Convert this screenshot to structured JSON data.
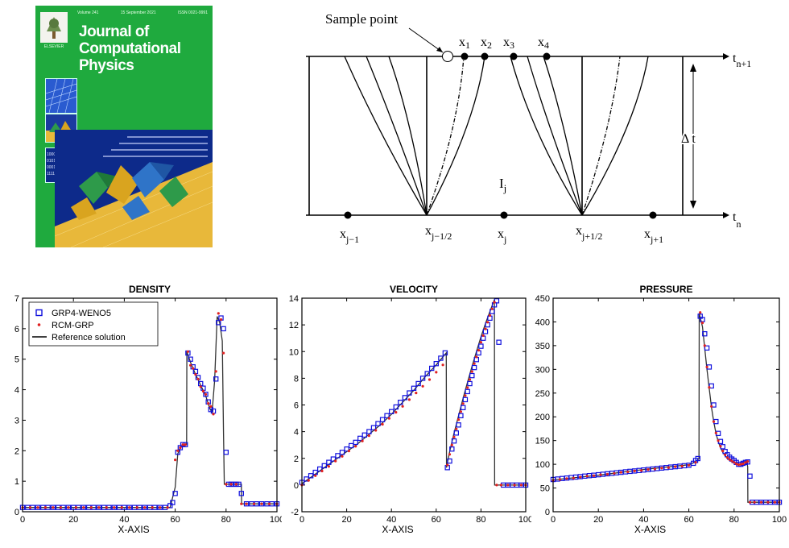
{
  "cover": {
    "title_lines": [
      "Journal of",
      "Computational",
      "Physics"
    ],
    "volume": "Volume 241",
    "date": "15 September 2021",
    "issn": "ISSN 0021-9991",
    "publisher": "ELSEVIER",
    "binary_rows": [
      "10000100101010",
      "01010111010110",
      "00010011010011",
      "11111011100110"
    ],
    "colors": {
      "background": "#1faa3e",
      "title": "#ffffff",
      "floor": "#e8b83a",
      "sky": "#0d2a8a",
      "crystal_blue": "#2f74c8",
      "crystal_green": "#2e9a4a",
      "crystal_gold": "#d9a41f"
    }
  },
  "schematic": {
    "sample_point_label": "Sample point",
    "x_points": [
      "x",
      "x",
      "x",
      "x"
    ],
    "x_point_subs": [
      "1",
      "2",
      "3",
      "4"
    ],
    "top_level": "t",
    "top_level_sub": "n+1",
    "bottom_level": "t",
    "bottom_level_sub": "n",
    "delta_t": "Δ t",
    "cell_label": "I",
    "cell_sub": "j",
    "bottom_labels": [
      {
        "main": "x",
        "sub": "j−1"
      },
      {
        "main": "x",
        "sub": "j−1/2"
      },
      {
        "main": "x",
        "sub": "j"
      },
      {
        "main": "x",
        "sub": "j+1/2"
      },
      {
        "main": "x",
        "sub": "j+1"
      }
    ]
  },
  "chart_data": [
    {
      "type": "scatter",
      "title": "DENSITY",
      "xlabel": "X-AXIS",
      "ylabel": "",
      "xlim": [
        0,
        100
      ],
      "ylim": [
        0,
        7
      ],
      "xticks": [
        "0",
        "20",
        "40",
        "60",
        "80",
        "100"
      ],
      "yticks": [
        "0",
        "1",
        "2",
        "3",
        "4",
        "5",
        "6",
        "7"
      ],
      "legend": {
        "placement": "top-left",
        "entries": [
          "GRP4-WENO5",
          "RCM-GRP",
          "Reference solution"
        ]
      },
      "reference": {
        "name": "Reference solution",
        "color": "#000000",
        "x": [
          0,
          58,
          60,
          61,
          62,
          64,
          64.5,
          64.6,
          66,
          68,
          70,
          72,
          73.5,
          74.5,
          75.5,
          76.5,
          77.5,
          78.5,
          79,
          79.3,
          80,
          86,
          86.1,
          100
        ],
        "y": [
          0.14,
          0.14,
          0.8,
          1.9,
          2.1,
          2.2,
          2.2,
          5.25,
          4.9,
          4.5,
          4.15,
          3.8,
          3.4,
          3.25,
          4.3,
          6.4,
          6.2,
          5.6,
          2.6,
          0.9,
          0.9,
          0.9,
          0.26,
          0.26
        ]
      },
      "series": [
        {
          "name": "GRP4-WENO5",
          "marker": "square",
          "color": "#1010dd",
          "x": [
            0,
            2,
            4,
            6,
            8,
            10,
            12,
            14,
            16,
            18,
            20,
            22,
            24,
            26,
            28,
            30,
            32,
            34,
            36,
            38,
            40,
            42,
            44,
            46,
            48,
            50,
            52,
            54,
            56,
            58,
            59,
            60,
            61,
            62,
            63,
            64,
            65,
            66,
            67,
            68,
            69,
            70,
            71,
            72,
            73,
            74,
            75,
            76,
            77,
            78,
            79,
            80,
            81,
            82,
            83,
            84,
            85,
            86,
            88,
            90,
            92,
            94,
            96,
            98,
            100
          ],
          "y": [
            0.14,
            0.14,
            0.14,
            0.14,
            0.14,
            0.14,
            0.14,
            0.14,
            0.14,
            0.14,
            0.14,
            0.14,
            0.14,
            0.14,
            0.14,
            0.14,
            0.14,
            0.14,
            0.14,
            0.14,
            0.14,
            0.14,
            0.14,
            0.14,
            0.14,
            0.14,
            0.14,
            0.14,
            0.14,
            0.2,
            0.3,
            0.6,
            1.95,
            2.1,
            2.2,
            2.2,
            5.2,
            5.0,
            4.75,
            4.6,
            4.4,
            4.2,
            4.05,
            3.85,
            3.6,
            3.35,
            3.3,
            4.35,
            6.2,
            6.35,
            6.0,
            1.95,
            0.9,
            0.9,
            0.9,
            0.9,
            0.9,
            0.6,
            0.26,
            0.26,
            0.26,
            0.26,
            0.26,
            0.26,
            0.26
          ]
        },
        {
          "name": "RCM-GRP",
          "marker": "dot",
          "color": "#e02020",
          "x": [
            0,
            3,
            6,
            9,
            12,
            15,
            18,
            21,
            24,
            27,
            30,
            33,
            36,
            39,
            42,
            45,
            48,
            51,
            54,
            57,
            60,
            61,
            62,
            63,
            64,
            65,
            66,
            67,
            68,
            69,
            70,
            71,
            72,
            73,
            74,
            75,
            76,
            77,
            78,
            79,
            80,
            82,
            84,
            86,
            88,
            91,
            94,
            97,
            100
          ],
          "y": [
            0.14,
            0.14,
            0.14,
            0.14,
            0.14,
            0.14,
            0.14,
            0.14,
            0.14,
            0.14,
            0.14,
            0.14,
            0.14,
            0.14,
            0.14,
            0.14,
            0.14,
            0.14,
            0.14,
            0.14,
            1.7,
            2.0,
            2.1,
            2.2,
            2.2,
            5.25,
            4.8,
            4.7,
            4.5,
            4.35,
            4.1,
            3.95,
            3.85,
            3.55,
            3.45,
            3.2,
            4.6,
            6.5,
            6.3,
            5.2,
            0.9,
            0.9,
            0.9,
            0.26,
            0.26,
            0.26,
            0.26,
            0.26,
            0.26
          ]
        }
      ]
    },
    {
      "type": "scatter",
      "title": "VELOCITY",
      "xlabel": "X-AXIS",
      "ylabel": "",
      "xlim": [
        0,
        100
      ],
      "ylim": [
        -2,
        14
      ],
      "xticks": [
        "0",
        "20",
        "40",
        "60",
        "80",
        "100"
      ],
      "yticks": [
        "-2",
        "0",
        "2",
        "4",
        "6",
        "8",
        "10",
        "12",
        "14"
      ],
      "reference": {
        "name": "Reference solution",
        "color": "#000000",
        "x": [
          0,
          5,
          10,
          15,
          20,
          25,
          30,
          35,
          40,
          45,
          50,
          55,
          60,
          64.5,
          64.6,
          66,
          68,
          70,
          72,
          74,
          76,
          78,
          80,
          82,
          84,
          86,
          86.1,
          100
        ],
        "y": [
          0.1,
          0.7,
          1.3,
          1.9,
          2.5,
          3.1,
          3.8,
          4.5,
          5.3,
          6.2,
          7.1,
          8.1,
          9.0,
          9.9,
          1.3,
          2.5,
          3.9,
          5.2,
          6.5,
          7.7,
          8.9,
          10.0,
          11.1,
          12.1,
          13.0,
          13.9,
          0.0,
          0.0
        ]
      },
      "series": [
        {
          "name": "GRP4-WENO5",
          "marker": "square",
          "color": "#1010dd",
          "x": [
            0,
            2,
            4,
            6,
            8,
            10,
            12,
            14,
            16,
            18,
            20,
            22,
            24,
            26,
            28,
            30,
            32,
            34,
            36,
            38,
            40,
            42,
            44,
            46,
            48,
            50,
            52,
            54,
            56,
            58,
            60,
            62,
            64,
            65,
            66,
            67,
            68,
            69,
            70,
            71,
            72,
            73,
            74,
            75,
            76,
            77,
            78,
            79,
            80,
            81,
            82,
            83,
            84,
            85,
            86,
            87,
            88,
            90,
            92,
            94,
            96,
            98,
            100
          ],
          "y": [
            0.2,
            0.45,
            0.7,
            0.95,
            1.2,
            1.45,
            1.7,
            1.95,
            2.2,
            2.45,
            2.7,
            2.95,
            3.2,
            3.5,
            3.75,
            4.0,
            4.3,
            4.6,
            4.9,
            5.2,
            5.5,
            5.85,
            6.2,
            6.55,
            6.9,
            7.25,
            7.6,
            8.0,
            8.35,
            8.75,
            9.1,
            9.5,
            9.9,
            1.3,
            1.8,
            2.7,
            3.3,
            3.9,
            4.5,
            5.2,
            5.8,
            6.4,
            7.0,
            7.6,
            8.2,
            8.8,
            9.4,
            9.9,
            10.4,
            11.0,
            11.5,
            12.0,
            12.5,
            13.0,
            13.5,
            13.8,
            10.7,
            0.0,
            0.0,
            0.0,
            0.0,
            0.0,
            0.0
          ]
        },
        {
          "name": "RCM-GRP",
          "marker": "dot",
          "color": "#e02020",
          "x": [
            0,
            3,
            6,
            9,
            12,
            15,
            18,
            21,
            24,
            27,
            30,
            33,
            36,
            39,
            42,
            45,
            48,
            51,
            54,
            57,
            60,
            63,
            65,
            66,
            67,
            68,
            69,
            70,
            71,
            72,
            73,
            74,
            75,
            76,
            77,
            78,
            79,
            80,
            81,
            82,
            83,
            84,
            85,
            86,
            87,
            89,
            92,
            95,
            98,
            100
          ],
          "y": [
            0.0,
            0.35,
            0.7,
            1.05,
            1.4,
            1.8,
            2.15,
            2.55,
            2.9,
            3.3,
            3.7,
            4.1,
            4.55,
            5.0,
            5.45,
            5.9,
            6.4,
            6.9,
            7.4,
            7.9,
            8.45,
            9.0,
            1.5,
            2.3,
            3.0,
            3.6,
            4.2,
            4.9,
            5.5,
            6.1,
            6.7,
            7.3,
            7.9,
            8.5,
            9.1,
            9.6,
            10.1,
            10.7,
            11.2,
            11.7,
            12.2,
            12.7,
            13.2,
            13.7,
            0.0,
            0.0,
            0.0,
            0.0,
            0.0,
            0.0
          ]
        }
      ]
    },
    {
      "type": "scatter",
      "title": "PRESSURE",
      "xlabel": "X-AXIS",
      "ylabel": "",
      "xlim": [
        0,
        100
      ],
      "ylim": [
        0,
        450
      ],
      "xticks": [
        "0",
        "20",
        "40",
        "60",
        "80",
        "100"
      ],
      "yticks": [
        "0",
        "50",
        "100",
        "150",
        "200",
        "250",
        "300",
        "350",
        "400",
        "450"
      ],
      "reference": {
        "name": "Reference solution",
        "color": "#000000",
        "x": [
          0,
          10,
          20,
          30,
          40,
          50,
          60,
          63,
          64.5,
          64.6,
          66,
          67,
          68,
          69,
          70,
          71,
          72,
          73,
          74,
          75,
          76,
          78,
          80,
          82,
          84,
          85.5,
          86,
          86.1,
          100
        ],
        "y": [
          67,
          72,
          77,
          83,
          89,
          94,
          99,
          105,
          112,
          418,
          390,
          345,
          300,
          260,
          220,
          190,
          165,
          148,
          135,
          125,
          118,
          110,
          104,
          100,
          102,
          106,
          95,
          20,
          20
        ]
      },
      "series": [
        {
          "name": "GRP4-WENO5",
          "marker": "square",
          "color": "#1010dd",
          "x": [
            0,
            2,
            4,
            6,
            8,
            10,
            12,
            14,
            16,
            18,
            20,
            22,
            24,
            26,
            28,
            30,
            32,
            34,
            36,
            38,
            40,
            42,
            44,
            46,
            48,
            50,
            52,
            54,
            56,
            58,
            60,
            62,
            63,
            64,
            65,
            66,
            67,
            68,
            69,
            70,
            71,
            72,
            73,
            74,
            75,
            76,
            77,
            78,
            79,
            80,
            81,
            82,
            83,
            84,
            85,
            86,
            87,
            88,
            90,
            92,
            94,
            96,
            98,
            100
          ],
          "y": [
            68,
            69,
            70,
            71,
            72,
            73,
            74,
            75,
            76,
            77,
            78,
            79,
            80,
            81,
            82,
            83,
            84,
            85,
            86,
            87,
            88,
            89,
            90,
            91,
            92,
            93,
            94,
            95,
            96,
            97,
            98,
            102,
            108,
            112,
            412,
            405,
            375,
            345,
            305,
            265,
            225,
            190,
            165,
            148,
            137,
            127,
            120,
            115,
            111,
            108,
            104,
            100,
            100,
            102,
            104,
            105,
            75,
            20,
            20,
            20,
            20,
            20,
            20,
            20
          ]
        },
        {
          "name": "RCM-GRP",
          "marker": "dot",
          "color": "#e02020",
          "x": [
            0,
            3,
            6,
            9,
            12,
            15,
            18,
            21,
            24,
            27,
            30,
            33,
            36,
            39,
            42,
            45,
            48,
            51,
            54,
            57,
            60,
            63,
            65,
            66,
            67,
            68,
            69,
            70,
            71,
            72,
            73,
            74,
            75,
            76,
            77,
            78,
            79,
            80,
            81,
            82,
            83,
            84,
            85,
            86,
            87,
            89,
            92,
            95,
            98,
            100
          ],
          "y": [
            66,
            68,
            70,
            71,
            73,
            75,
            76,
            78,
            79,
            81,
            83,
            84,
            86,
            87,
            89,
            90,
            92,
            93,
            95,
            96,
            98,
            104,
            420,
            398,
            350,
            305,
            262,
            222,
            190,
            166,
            150,
            138,
            128,
            120,
            114,
            110,
            107,
            104,
            101,
            99,
            100,
            101,
            104,
            106,
            20,
            20,
            20,
            20,
            20,
            20
          ]
        }
      ]
    }
  ]
}
